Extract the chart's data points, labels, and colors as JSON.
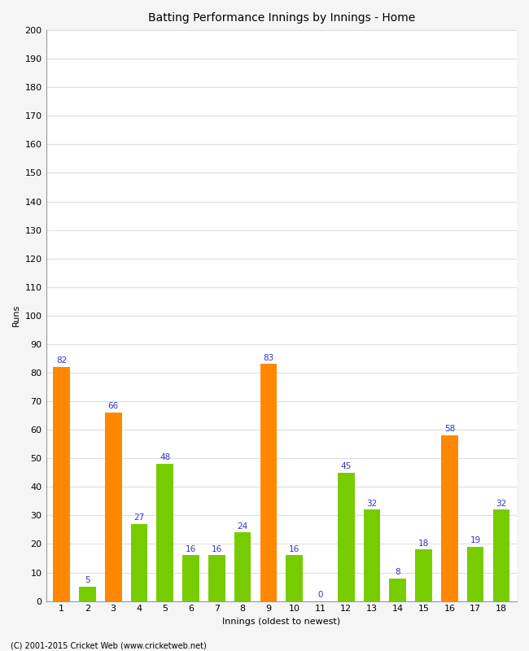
{
  "title": "Batting Performance Innings by Innings - Home",
  "xlabel": "Innings (oldest to newest)",
  "ylabel": "Runs",
  "categories": [
    "1",
    "2",
    "3",
    "4",
    "5",
    "6",
    "7",
    "8",
    "9",
    "10",
    "11",
    "12",
    "13",
    "14",
    "15",
    "16",
    "17",
    "18"
  ],
  "values": [
    82,
    5,
    66,
    27,
    48,
    16,
    16,
    24,
    83,
    16,
    0,
    45,
    32,
    8,
    18,
    58,
    19,
    32
  ],
  "bar_colors": [
    "#ff8800",
    "#77cc00",
    "#ff8800",
    "#77cc00",
    "#77cc00",
    "#77cc00",
    "#77cc00",
    "#77cc00",
    "#ff8800",
    "#77cc00",
    "#77cc00",
    "#77cc00",
    "#77cc00",
    "#77cc00",
    "#77cc00",
    "#ff8800",
    "#77cc00",
    "#77cc00"
  ],
  "ylim": [
    0,
    200
  ],
  "yticks": [
    0,
    10,
    20,
    30,
    40,
    50,
    60,
    70,
    80,
    90,
    100,
    110,
    120,
    130,
    140,
    150,
    160,
    170,
    180,
    190,
    200
  ],
  "label_color": "#3333cc",
  "label_fontsize": 7.5,
  "axis_label_fontsize": 8,
  "tick_fontsize": 8,
  "title_fontsize": 10,
  "background_color": "#f5f5f5",
  "plot_bg_color": "#ffffff",
  "grid_color": "#dddddd",
  "footer": "(C) 2001-2015 Cricket Web (www.cricketweb.net)"
}
